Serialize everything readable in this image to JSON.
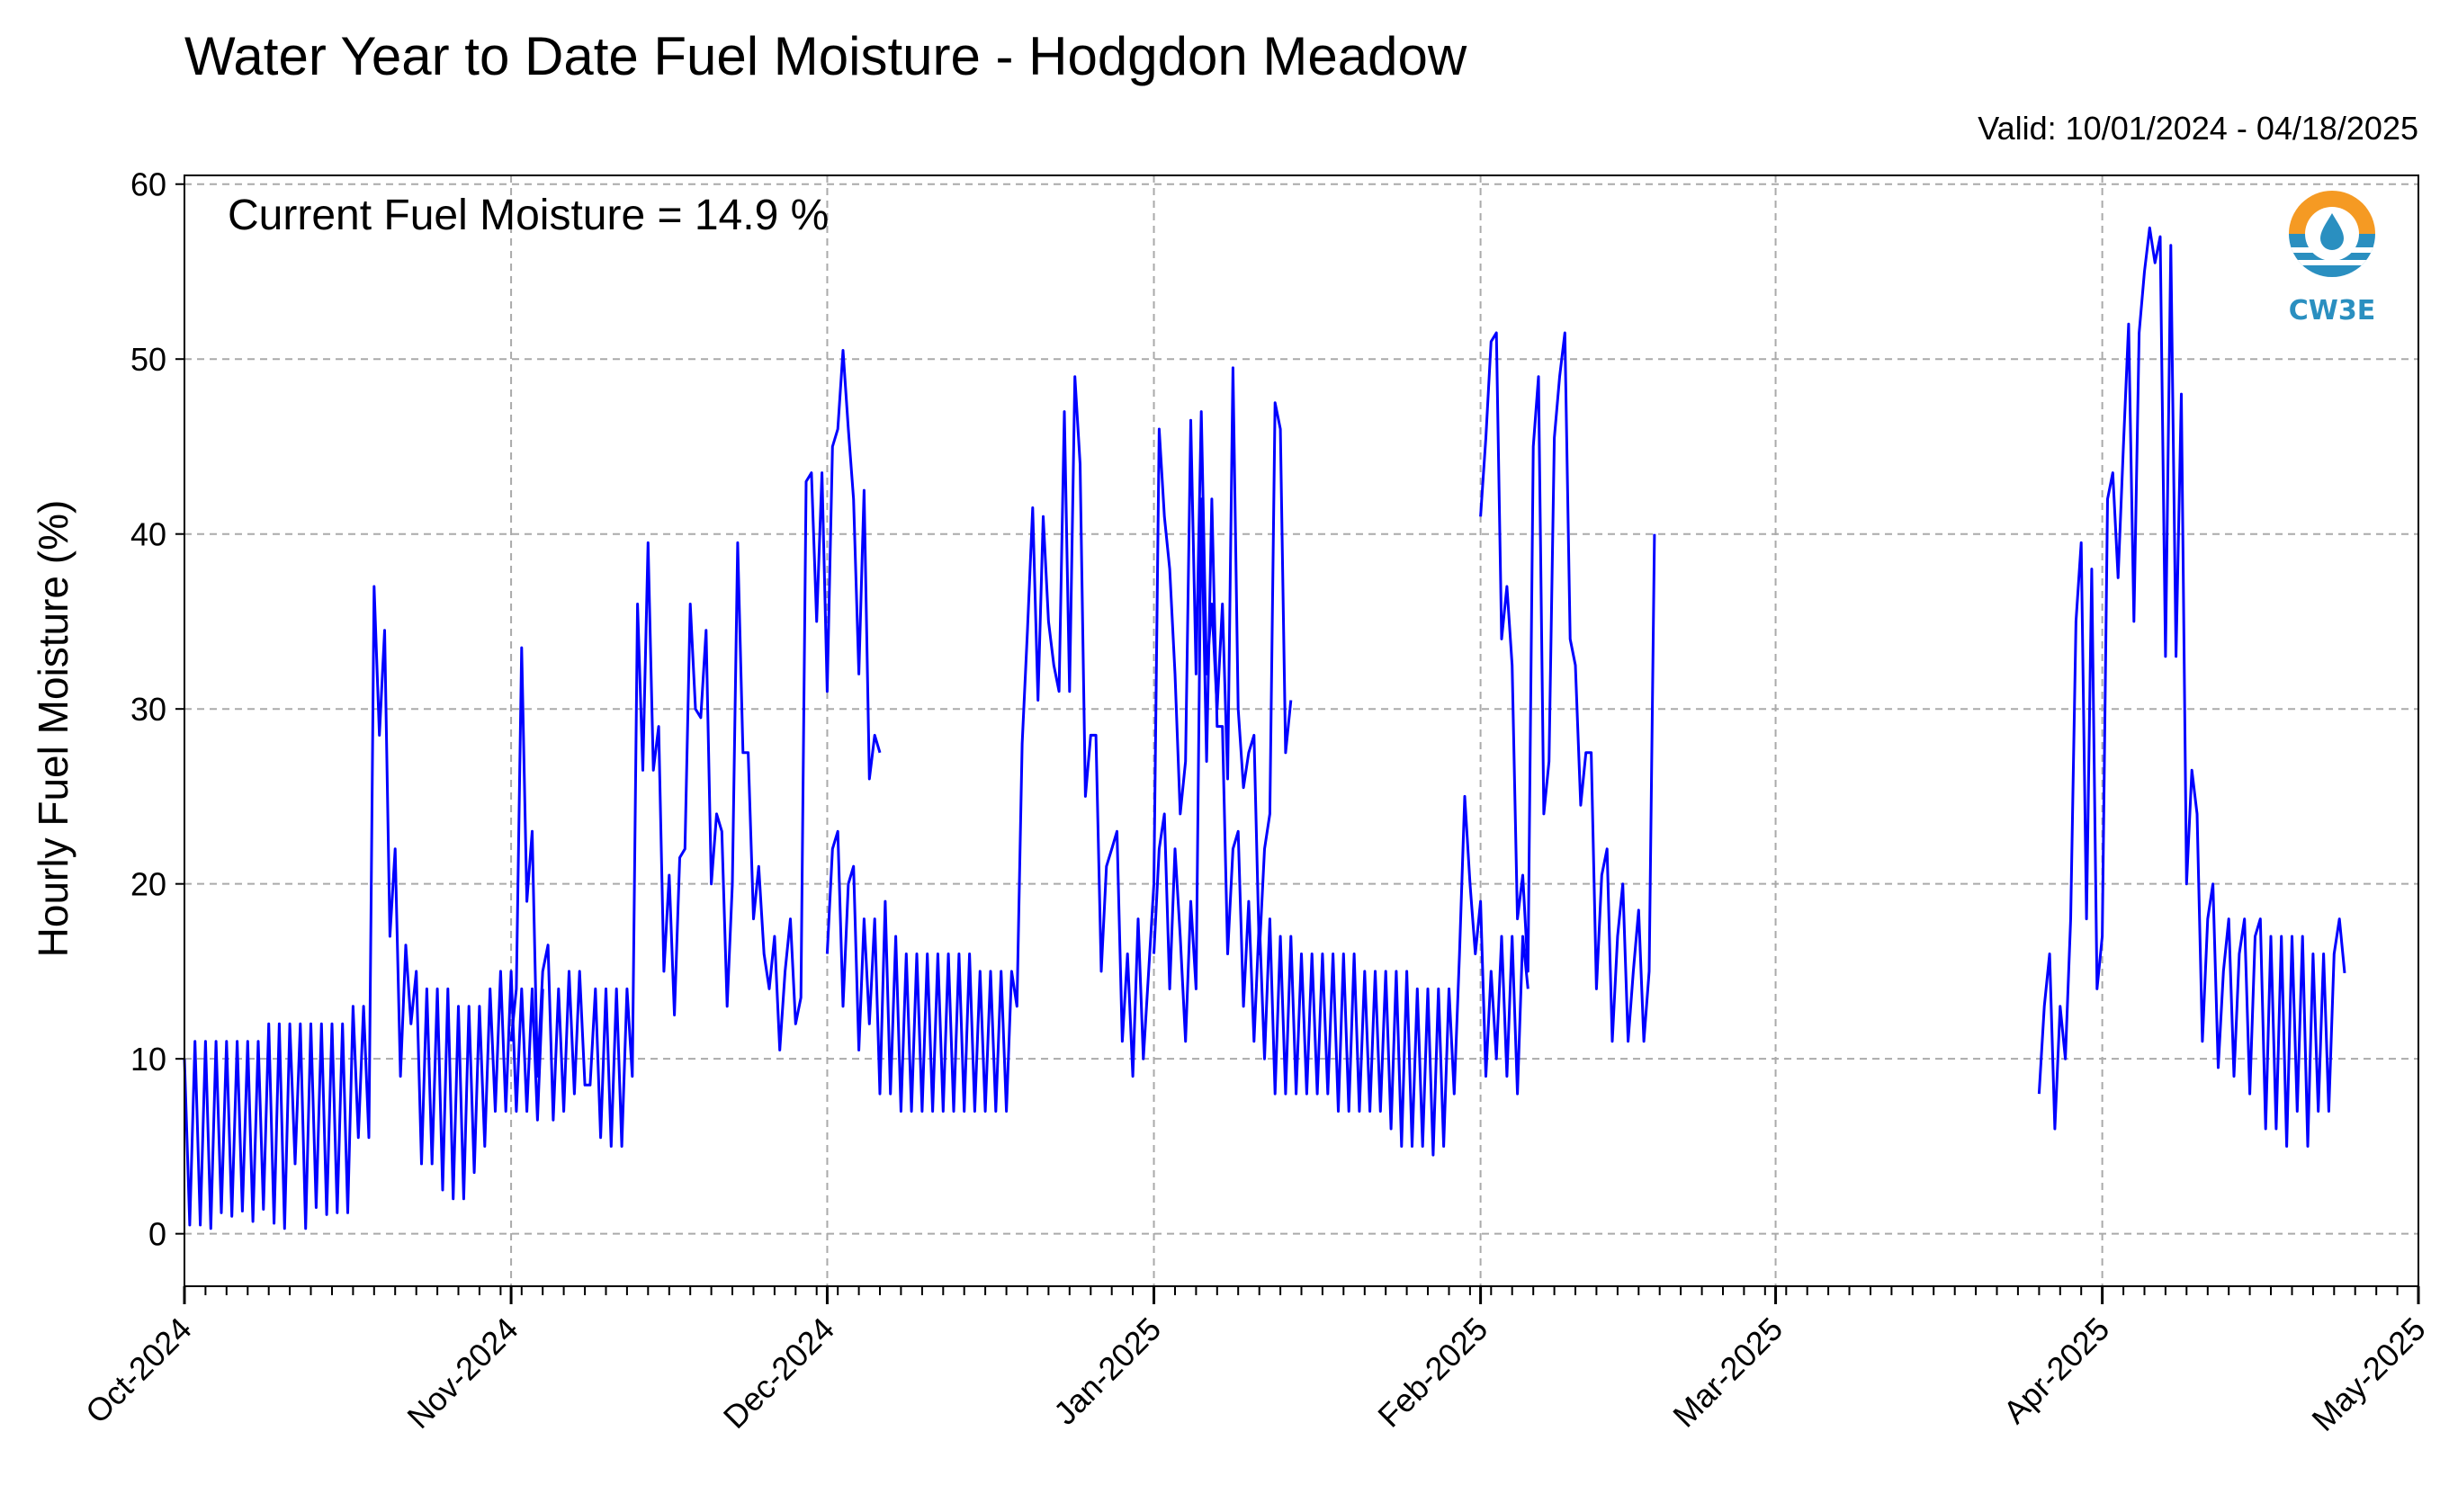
{
  "chart_data": {
    "type": "line",
    "title": "Water Year to Date Fuel Moisture - Hodgdon Meadow",
    "subtitle": "Valid: 10/01/2024 - 04/18/2025",
    "ylabel": "Hourly Fuel Moisture (%)",
    "xlabel": "",
    "ylim": [
      -3,
      60.5
    ],
    "yticks": [
      0,
      10,
      20,
      30,
      40,
      50,
      60
    ],
    "xlim": [
      "2024-10-01",
      "2025-05-01"
    ],
    "xticks": [
      {
        "date": "2024-10-01",
        "label": "Oct-2024"
      },
      {
        "date": "2024-11-01",
        "label": "Nov-2024"
      },
      {
        "date": "2024-12-01",
        "label": "Dec-2024"
      },
      {
        "date": "2025-01-01",
        "label": "Jan-2025"
      },
      {
        "date": "2025-02-01",
        "label": "Feb-2025"
      },
      {
        "date": "2025-03-01",
        "label": "Mar-2025"
      },
      {
        "date": "2025-04-01",
        "label": "Apr-2025"
      },
      {
        "date": "2025-05-01",
        "label": "May-2025"
      }
    ],
    "grid": true,
    "annotation": "Current Fuel Moisture = 14.9 %",
    "series": [
      {
        "color": "#0000ff",
        "segments": [
          {
            "start": "2024-10-01",
            "values": [
              10,
              0.5,
              11,
              0.5,
              11,
              0.3,
              11,
              1.2,
              11,
              1.0,
              11,
              1.3,
              11,
              0.7,
              11,
              1.4,
              12,
              0.6,
              12,
              0.3,
              12,
              4.0,
              12,
              0.3,
              12,
              1.5,
              12,
              1.1,
              12,
              1.2,
              12,
              1.2,
              13,
              5.5,
              13,
              5.5,
              37,
              28.5,
              34.5,
              17,
              22,
              9,
              16.5,
              12,
              15,
              4,
              14,
              4,
              14,
              2.5,
              14,
              2,
              13,
              2,
              13,
              3.5,
              13,
              5,
              14,
              7,
              15,
              7,
              15,
              7,
              14,
              7,
              14,
              6.5,
              14
            ]
          },
          {
            "start": "2024-11-01",
            "values": [
              11,
              14,
              33.5,
              19,
              23,
              9,
              15,
              16.5,
              6.5,
              14,
              7,
              15,
              8,
              15,
              8.5,
              8.5,
              14,
              5.5,
              14,
              5,
              14,
              5,
              14,
              9,
              36,
              26.5,
              39.5,
              26.5,
              29,
              15,
              20.5,
              12.5,
              21.5,
              22,
              36,
              30,
              29.5,
              34.5,
              20,
              24,
              23,
              13,
              20,
              39.5,
              27.5,
              27.5,
              18,
              21,
              16,
              14,
              17,
              10.5,
              15,
              18,
              12,
              13.5,
              43,
              43.5,
              35,
              43.5,
              31,
              45,
              46,
              50.5,
              46,
              42,
              32,
              42.5,
              26,
              28.5,
              27.5
            ]
          },
          {
            "start": "2024-12-01",
            "values": [
              16,
              22,
              23,
              13,
              20,
              21,
              10.5,
              18,
              12,
              18,
              8,
              19,
              8,
              17,
              7,
              16,
              7,
              16,
              7,
              16,
              7,
              16,
              7,
              16,
              7,
              16,
              7,
              16,
              7,
              15,
              7,
              15,
              7,
              15,
              7,
              15,
              13,
              28,
              34.5,
              41.5,
              30.5,
              41,
              35,
              32.5,
              31,
              47,
              31,
              49,
              44,
              25,
              28.5,
              28.5,
              15,
              21,
              22,
              23,
              11,
              16,
              9,
              18,
              10,
              15,
              20,
              46,
              41,
              38,
              32,
              24,
              27,
              46.5,
              32,
              47,
              32,
              36,
              30,
              36,
              26,
              49.5,
              30,
              25.5,
              27.5,
              28.5,
              16,
              22,
              24,
              47.5,
              46,
              27.5,
              30.5
            ]
          },
          {
            "start": "2025-01-01",
            "values": [
              16,
              22,
              24,
              14,
              22,
              17,
              11,
              19,
              14,
              42,
              27,
              42,
              29,
              29,
              16,
              22,
              23,
              13,
              19,
              11,
              18,
              10,
              18,
              8,
              17,
              8,
              17,
              8,
              16,
              8,
              16,
              8,
              16,
              8,
              16,
              7,
              16,
              7,
              16,
              7,
              15,
              7,
              15,
              7,
              15,
              6,
              15,
              5,
              15,
              5,
              14,
              5,
              14,
              4.5,
              14,
              5,
              14,
              8,
              16,
              25,
              20,
              16,
              19,
              9,
              15,
              10,
              17,
              9,
              17,
              8,
              17,
              14
            ]
          },
          {
            "start": "2025-02-01",
            "values": [
              41,
              45.5,
              51,
              51.5,
              34,
              37,
              32.5,
              18,
              20.5,
              15,
              45,
              49,
              24,
              27,
              45.5,
              49,
              51.5,
              34,
              32.5,
              24.5,
              27.5,
              27.5,
              14,
              20.5,
              22,
              11,
              17,
              20,
              11,
              15,
              18.5,
              11,
              15,
              40
            ]
          },
          {
            "start": "2025-03-26",
            "values": [
              8,
              13,
              16,
              6,
              13,
              10,
              18,
              35,
              39.5,
              18,
              38,
              14,
              17,
              42,
              43.5,
              37.5,
              45,
              52,
              35,
              51.5,
              55,
              57.5,
              55.5,
              57,
              33,
              56.5,
              33,
              48,
              20,
              26.5,
              24,
              11,
              18,
              20,
              9.5,
              15,
              18,
              9,
              16,
              18,
              8,
              17,
              18,
              6,
              17,
              6,
              17,
              5,
              17,
              7,
              17,
              5,
              16,
              7,
              16,
              7,
              16,
              18,
              14.9
            ]
          }
        ]
      }
    ]
  },
  "logo": {
    "text": "CW3E",
    "color_orange": "#f59a23",
    "color_blue": "#2a8fc0"
  }
}
